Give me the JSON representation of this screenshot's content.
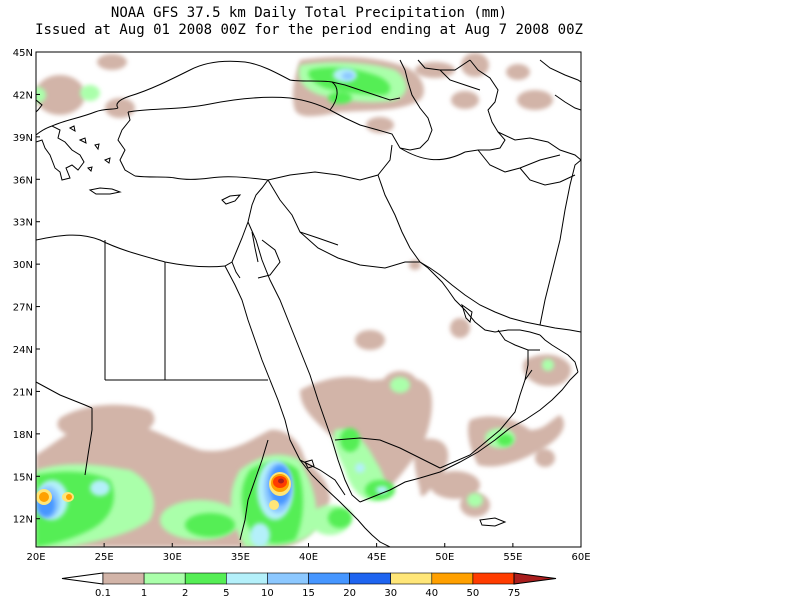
{
  "title": {
    "line1": "NOAA GFS 37.5 km Daily Total Precipitation (mm)",
    "line2": "Issued at Aug 01 2008 00Z for the period ending at Aug 7 2008 00Z"
  },
  "map": {
    "lon_labels": [
      "20E",
      "25E",
      "30E",
      "35E",
      "40E",
      "45E",
      "50E",
      "55E",
      "60E"
    ],
    "lat_labels": [
      "12N",
      "15N",
      "18N",
      "21N",
      "24N",
      "27N",
      "30N",
      "33N",
      "36N",
      "39N",
      "42N",
      "45N"
    ],
    "lon_range": [
      20,
      60
    ],
    "lat_range": [
      10,
      45
    ]
  },
  "legend": {
    "labels": [
      "0.1",
      "1",
      "2",
      "5",
      "10",
      "15",
      "20",
      "30",
      "40",
      "50",
      "75"
    ],
    "colors": [
      "#ffffff",
      "#d2b4a8",
      "#aaffaa",
      "#55ee55",
      "#b4f0fa",
      "#8cc8ff",
      "#4696ff",
      "#1e64f0",
      "#ffe678",
      "#ffa000",
      "#ff3c00",
      "#aa1e1e"
    ]
  }
}
